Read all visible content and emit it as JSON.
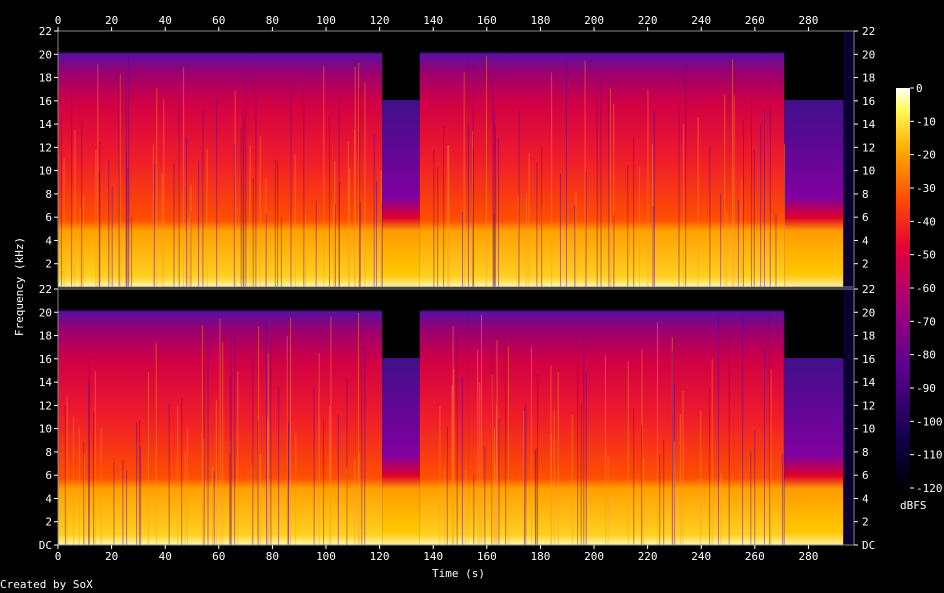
{
  "chart_data": {
    "type": "heatmap",
    "title": "",
    "xlabel": "Time (s)",
    "ylabel": "Frequency (kHz)",
    "x_ticks": [
      0,
      20,
      40,
      60,
      80,
      100,
      120,
      140,
      160,
      180,
      200,
      220,
      240,
      260,
      280
    ],
    "xlim": [
      0,
      297
    ],
    "channels": [
      {
        "name": "",
        "y_ticks": [
          "22",
          "20",
          "18",
          "16",
          "14",
          "12",
          "10",
          "8",
          "6",
          "4",
          "2"
        ],
        "ylim": [
          0,
          22
        ]
      },
      {
        "name": "",
        "y_ticks": [
          "22",
          "20",
          "18",
          "16",
          "14",
          "12",
          "10",
          "8",
          "6",
          "4",
          "2",
          "DC"
        ],
        "ylim": [
          0,
          22
        ]
      }
    ],
    "colorbar": {
      "label": "dBFS",
      "ticks": [
        "0",
        "-10",
        "-20",
        "-30",
        "-40",
        "-50",
        "-60",
        "-70",
        "-80",
        "-90",
        "-100",
        "-110",
        "-120"
      ],
      "range": [
        -120,
        0
      ]
    },
    "segments": [
      {
        "start": 0,
        "end": 121,
        "cutoff_khz": 20
      },
      {
        "start": 121,
        "end": 135,
        "cutoff_khz": 16
      },
      {
        "start": 135,
        "end": 153,
        "cutoff_khz": 20
      },
      {
        "start": 153,
        "end": 271,
        "cutoff_khz": 20
      },
      {
        "start": 271,
        "end": 293,
        "cutoff_khz": 16
      }
    ],
    "footer": "Created by SoX"
  }
}
